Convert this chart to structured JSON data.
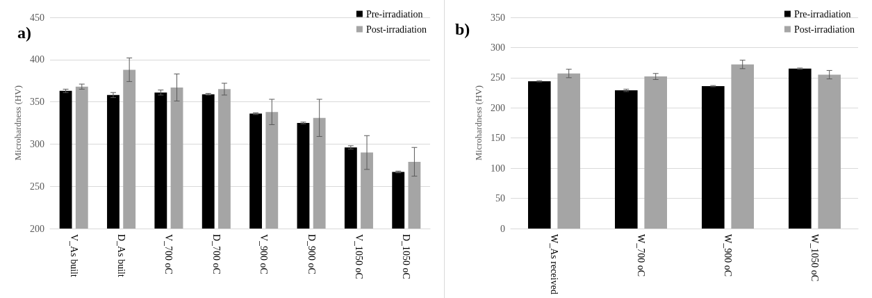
{
  "chart_data": [
    {
      "type": "bar",
      "title": "a)",
      "ylabel": "Microhardness (HV)",
      "categories": [
        "V_As built",
        "D_As built",
        "V_700 oC",
        "D_700 oC",
        "V_900 oC",
        "D_900 oC",
        "V_1050 oC",
        "D_1050 oC"
      ],
      "series": [
        {
          "name": "Pre-irradiation",
          "color": "#000000",
          "values": [
            363,
            358,
            361,
            359,
            336,
            325,
            296,
            267
          ],
          "errors": [
            2,
            3,
            3,
            1,
            1,
            1,
            2,
            1
          ]
        },
        {
          "name": "Post-irradiation",
          "color": "#a5a5a5",
          "values": [
            368,
            388,
            367,
            365,
            338,
            331,
            290,
            279
          ],
          "errors": [
            3,
            14,
            16,
            7,
            15,
            22,
            20,
            17
          ]
        }
      ],
      "ylim": [
        200,
        450
      ],
      "yticks": [
        200,
        250,
        300,
        350,
        400,
        450
      ],
      "grid": "y",
      "legend": "top right"
    },
    {
      "type": "bar",
      "title": "b)",
      "ylabel": "Microhardness (HV)",
      "categories": [
        "W_As received",
        "W_700 oC",
        "W_900 oC",
        "W_1050 oC"
      ],
      "series": [
        {
          "name": "Pre-irradiation",
          "color": "#000000",
          "values": [
            244,
            229,
            236,
            265
          ],
          "errors": [
            1,
            2,
            1,
            1
          ]
        },
        {
          "name": "Post-irradiation",
          "color": "#a5a5a5",
          "values": [
            257,
            252,
            272,
            255
          ],
          "errors": [
            7,
            5,
            7,
            7
          ]
        }
      ],
      "ylim": [
        0,
        350
      ],
      "yticks": [
        0,
        50,
        100,
        150,
        200,
        250,
        300,
        350
      ],
      "grid": "y",
      "legend": "top right"
    }
  ]
}
